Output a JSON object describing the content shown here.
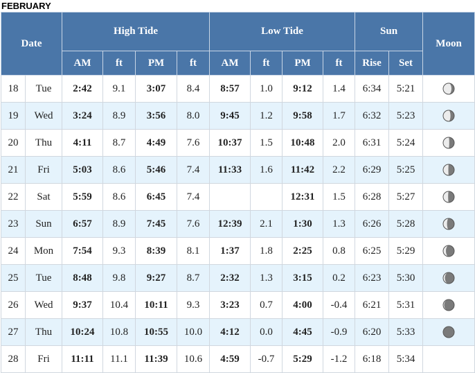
{
  "month": "FEBRUARY",
  "headers": {
    "date": "Date",
    "high_tide": "High Tide",
    "low_tide": "Low Tide",
    "sun": "Sun",
    "moon": "Moon",
    "am": "AM",
    "ft": "ft",
    "pm": "PM",
    "rise": "Rise",
    "set": "Set"
  },
  "rows": [
    {
      "day": "18",
      "dow": "Tue",
      "h_am": "2:42",
      "h_am_ft": "9.1",
      "h_pm": "3:07",
      "h_pm_ft": "8.4",
      "l_am": "8:57",
      "l_am_ft": "1.0",
      "l_pm": "9:12",
      "l_pm_ft": "1.4",
      "rise": "6:34",
      "set": "5:21",
      "moon": "waning-gibbous",
      "illum": 0.75
    },
    {
      "day": "19",
      "dow": "Wed",
      "h_am": "3:24",
      "h_am_ft": "8.9",
      "h_pm": "3:56",
      "h_pm_ft": "8.0",
      "l_am": "9:45",
      "l_am_ft": "1.2",
      "l_pm": "9:58",
      "l_pm_ft": "1.7",
      "rise": "6:32",
      "set": "5:23",
      "moon": "waning-gibbous",
      "illum": 0.66
    },
    {
      "day": "20",
      "dow": "Thu",
      "h_am": "4:11",
      "h_am_ft": "8.7",
      "h_pm": "4:49",
      "h_pm_ft": "7.6",
      "l_am": "10:37",
      "l_am_ft": "1.5",
      "l_pm": "10:48",
      "l_pm_ft": "2.0",
      "rise": "6:31",
      "set": "5:24",
      "moon": "last-quarter",
      "illum": 0.55
    },
    {
      "day": "21",
      "dow": "Fri",
      "h_am": "5:03",
      "h_am_ft": "8.6",
      "h_pm": "5:46",
      "h_pm_ft": "7.4",
      "l_am": "11:33",
      "l_am_ft": "1.6",
      "l_pm": "11:42",
      "l_pm_ft": "2.2",
      "rise": "6:29",
      "set": "5:25",
      "moon": "last-quarter",
      "illum": 0.47
    },
    {
      "day": "22",
      "dow": "Sat",
      "h_am": "5:59",
      "h_am_ft": "8.6",
      "h_pm": "6:45",
      "h_pm_ft": "7.4",
      "l_am": "",
      "l_am_ft": "",
      "l_pm": "12:31",
      "l_pm_ft": "1.5",
      "rise": "6:28",
      "set": "5:27",
      "moon": "last-quarter",
      "illum": 0.45
    },
    {
      "day": "23",
      "dow": "Sun",
      "h_am": "6:57",
      "h_am_ft": "8.9",
      "h_pm": "7:45",
      "h_pm_ft": "7.6",
      "l_am": "12:39",
      "l_am_ft": "2.1",
      "l_pm": "1:30",
      "l_pm_ft": "1.3",
      "rise": "6:26",
      "set": "5:28",
      "moon": "waning-crescent",
      "illum": 0.35
    },
    {
      "day": "24",
      "dow": "Mon",
      "h_am": "7:54",
      "h_am_ft": "9.3",
      "h_pm": "8:39",
      "h_pm_ft": "8.1",
      "l_am": "1:37",
      "l_am_ft": "1.8",
      "l_pm": "2:25",
      "l_pm_ft": "0.8",
      "rise": "6:25",
      "set": "5:29",
      "moon": "waning-crescent",
      "illum": 0.25
    },
    {
      "day": "25",
      "dow": "Tue",
      "h_am": "8:48",
      "h_am_ft": "9.8",
      "h_pm": "9:27",
      "h_pm_ft": "8.7",
      "l_am": "2:32",
      "l_am_ft": "1.3",
      "l_pm": "3:15",
      "l_pm_ft": "0.2",
      "rise": "6:23",
      "set": "5:30",
      "moon": "waning-crescent",
      "illum": 0.16
    },
    {
      "day": "26",
      "dow": "Wed",
      "h_am": "9:37",
      "h_am_ft": "10.4",
      "h_pm": "10:11",
      "h_pm_ft": "9.3",
      "l_am": "3:23",
      "l_am_ft": "0.7",
      "l_pm": "4:00",
      "l_pm_ft": "-0.4",
      "rise": "6:21",
      "set": "5:31",
      "moon": "waning-crescent",
      "illum": 0.09
    },
    {
      "day": "27",
      "dow": "Thu",
      "h_am": "10:24",
      "h_am_ft": "10.8",
      "h_pm": "10:55",
      "h_pm_ft": "10.0",
      "l_am": "4:12",
      "l_am_ft": "0.0",
      "l_pm": "4:45",
      "l_pm_ft": "-0.9",
      "rise": "6:20",
      "set": "5:33",
      "moon": "new-moon",
      "illum": 0.03
    },
    {
      "day": "28",
      "dow": "Fri",
      "h_am": "11:11",
      "h_am_ft": "11.1",
      "h_pm": "11:39",
      "h_pm_ft": "10.6",
      "l_am": "4:59",
      "l_am_ft": "-0.7",
      "l_pm": "5:29",
      "l_pm_ft": "-1.2",
      "rise": "6:18",
      "set": "5:34",
      "moon": "",
      "illum": null
    }
  ]
}
